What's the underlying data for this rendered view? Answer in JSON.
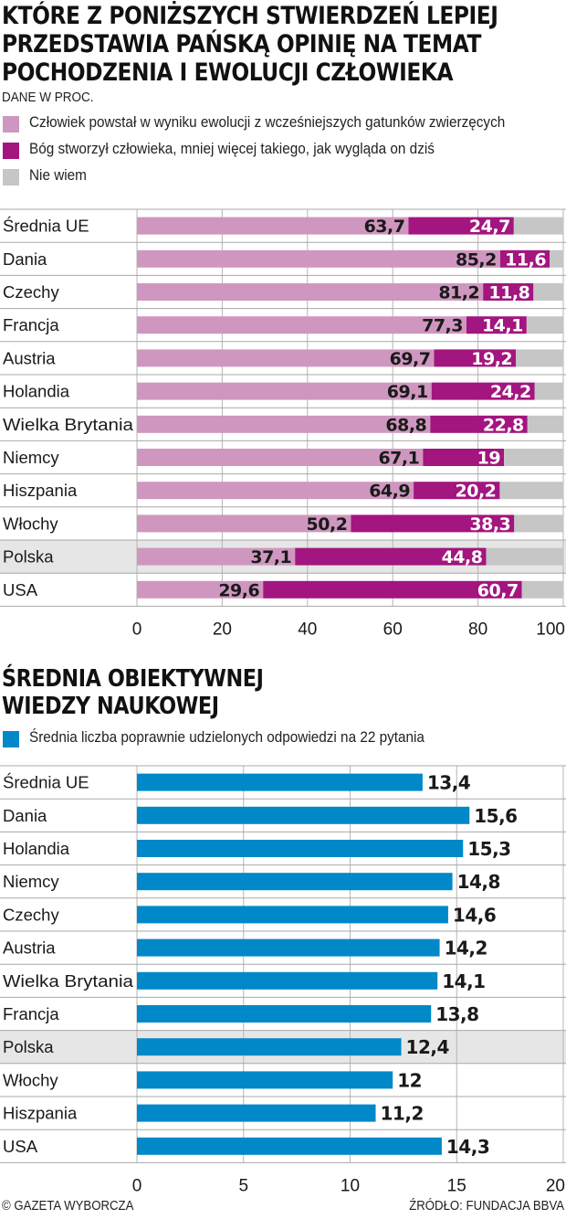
{
  "colors": {
    "evolution": "#cf97bf",
    "god": "#a3157f",
    "dontknow": "#c6c6c6",
    "knowledge": "#0088c8",
    "highlight": "#e6e6e6",
    "grid": "#aaaaaa"
  },
  "chart_data": [
    {
      "type": "bar",
      "stacked": true,
      "orientation": "horizontal",
      "title": "KTÓRE Z PONIŻSZYCH STWIERDZEŃ LEPIEJ PRZEDSTAWIA PAŃSKĄ OPINIĘ NA TEMAT POCHODZENIA I EWOLUCJI CZŁOWIEKA",
      "title_lines": [
        "KTÓRE Z PONIŻSZYCH STWIERDZEŃ LEPIEJ",
        "PRZEDSTAWIA PAŃSKĄ OPINIĘ NA TEMAT",
        "POCHODZENIA I EWOLUCJI CZŁOWIEKA"
      ],
      "subtitle": "DANE W PROC.",
      "categories": [
        "Średnia UE",
        "Dania",
        "Czechy",
        "Francja",
        "Austria",
        "Holandia",
        "Wielka Brytania",
        "Niemcy",
        "Hiszpania",
        "Włochy",
        "Polska",
        "USA"
      ],
      "highlight": "Polska",
      "series": [
        {
          "name": "Człowiek powstał w wyniku ewolucji z wcześniejszych gatunków zwierzęcych",
          "values": [
            63.7,
            85.2,
            81.2,
            77.3,
            69.7,
            69.1,
            68.8,
            67.1,
            64.9,
            50.2,
            37.1,
            29.6
          ],
          "labels": [
            "63,7",
            "85,2",
            "81,2",
            "77,3",
            "69,7",
            "69,1",
            "68,8",
            "67,1",
            "64,9",
            "50,2",
            "37,1",
            "29,6"
          ]
        },
        {
          "name": "Bóg stworzył człowieka, mniej więcej takiego, jak wygląda on dziś",
          "values": [
            24.7,
            11.6,
            11.8,
            14.1,
            19.2,
            24.2,
            22.8,
            19,
            20.2,
            38.3,
            44.8,
            60.7
          ],
          "labels": [
            "24,7",
            "11,6",
            "11,8",
            "14,1",
            "19,2",
            "24,2",
            "22,8",
            "19",
            "20,2",
            "38,3",
            "44,8",
            "60,7"
          ]
        },
        {
          "name": "Nie wiem",
          "values": [
            11.6,
            3.2,
            7.0,
            8.6,
            11.1,
            6.7,
            8.4,
            13.9,
            14.9,
            11.5,
            18.1,
            9.7
          ],
          "labels": []
        }
      ],
      "xlim": [
        0,
        100
      ],
      "xticks": [
        "0",
        "20",
        "40",
        "60",
        "80",
        "100"
      ],
      "grid": true
    },
    {
      "type": "bar",
      "orientation": "horizontal",
      "title": "ŚREDNIA OBIEKTYWNEJ WIEDZY NAUKOWEJ",
      "title_lines": [
        "ŚREDNIA OBIEKTYWNEJ",
        "WIEDZY NAUKOWEJ"
      ],
      "categories": [
        "Średnia UE",
        "Dania",
        "Holandia",
        "Niemcy",
        "Czechy",
        "Austria",
        "Wielka Brytania",
        "Francja",
        "Polska",
        "Włochy",
        "Hiszpania",
        "USA"
      ],
      "highlight": "Polska",
      "series": [
        {
          "name": "Średnia liczba poprawnie udzielonych odpowiedzi na 22 pytania",
          "values": [
            13.4,
            15.6,
            15.3,
            14.8,
            14.6,
            14.2,
            14.1,
            13.8,
            12.4,
            12,
            11.2,
            14.3
          ],
          "labels": [
            "13,4",
            "15,6",
            "15,3",
            "14,8",
            "14,6",
            "14,2",
            "14,1",
            "13,8",
            "12,4",
            "12",
            "11,2",
            "14,3"
          ]
        }
      ],
      "xlim": [
        0,
        20
      ],
      "xticks": [
        "0",
        "5",
        "10",
        "15",
        "20"
      ],
      "grid": true
    }
  ],
  "footer": {
    "copyright": "© GAZETA WYBORCZA",
    "source": "ŹRÓDŁO: FUNDACJA BBVA"
  }
}
